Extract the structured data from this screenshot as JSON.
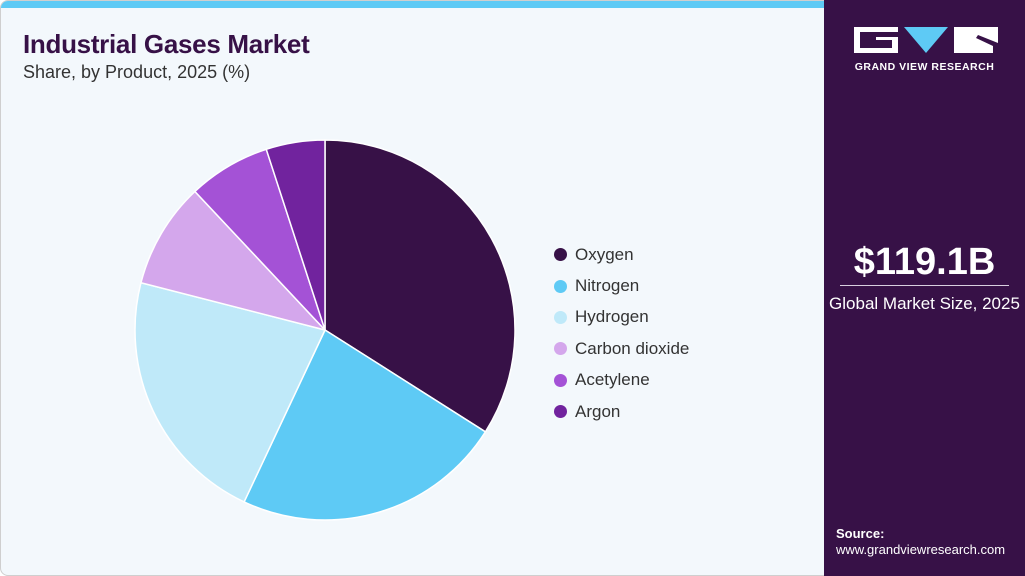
{
  "header": {
    "title": "Industrial Gases Market",
    "subtitle": "Share, by Product, 2025 (%)"
  },
  "sidebar": {
    "logo_text": "GRAND VIEW RESEARCH",
    "market_size": "$119.1B",
    "market_size_label": "Global Market Size, 2025",
    "source_label": "Source:",
    "source_url": "www.grandviewresearch.com"
  },
  "legend": [
    {
      "label": "Oxygen",
      "color": "#371147"
    },
    {
      "label": "Nitrogen",
      "color": "#5ecaf5"
    },
    {
      "label": "Hydrogen",
      "color": "#bfe9f9"
    },
    {
      "label": "Carbon dioxide",
      "color": "#d4a7ec"
    },
    {
      "label": "Acetylene",
      "color": "#a452d6"
    },
    {
      "label": "Argon",
      "color": "#71239e"
    }
  ],
  "chart_data": {
    "type": "pie",
    "title": "Industrial Gases Market",
    "subtitle": "Share, by Product, 2025 (%)",
    "categories": [
      "Oxygen",
      "Nitrogen",
      "Hydrogen",
      "Carbon dioxide",
      "Acetylene",
      "Argon"
    ],
    "values": [
      34,
      23,
      22,
      9,
      7,
      5
    ],
    "colors": [
      "#371147",
      "#5ecaf5",
      "#bfe9f9",
      "#d4a7ec",
      "#a452d6",
      "#71239e"
    ],
    "start_angle": "12 o'clock, clockwise",
    "legend_position": "right",
    "annotations": [
      "$119.1B Global Market Size, 2025"
    ]
  }
}
